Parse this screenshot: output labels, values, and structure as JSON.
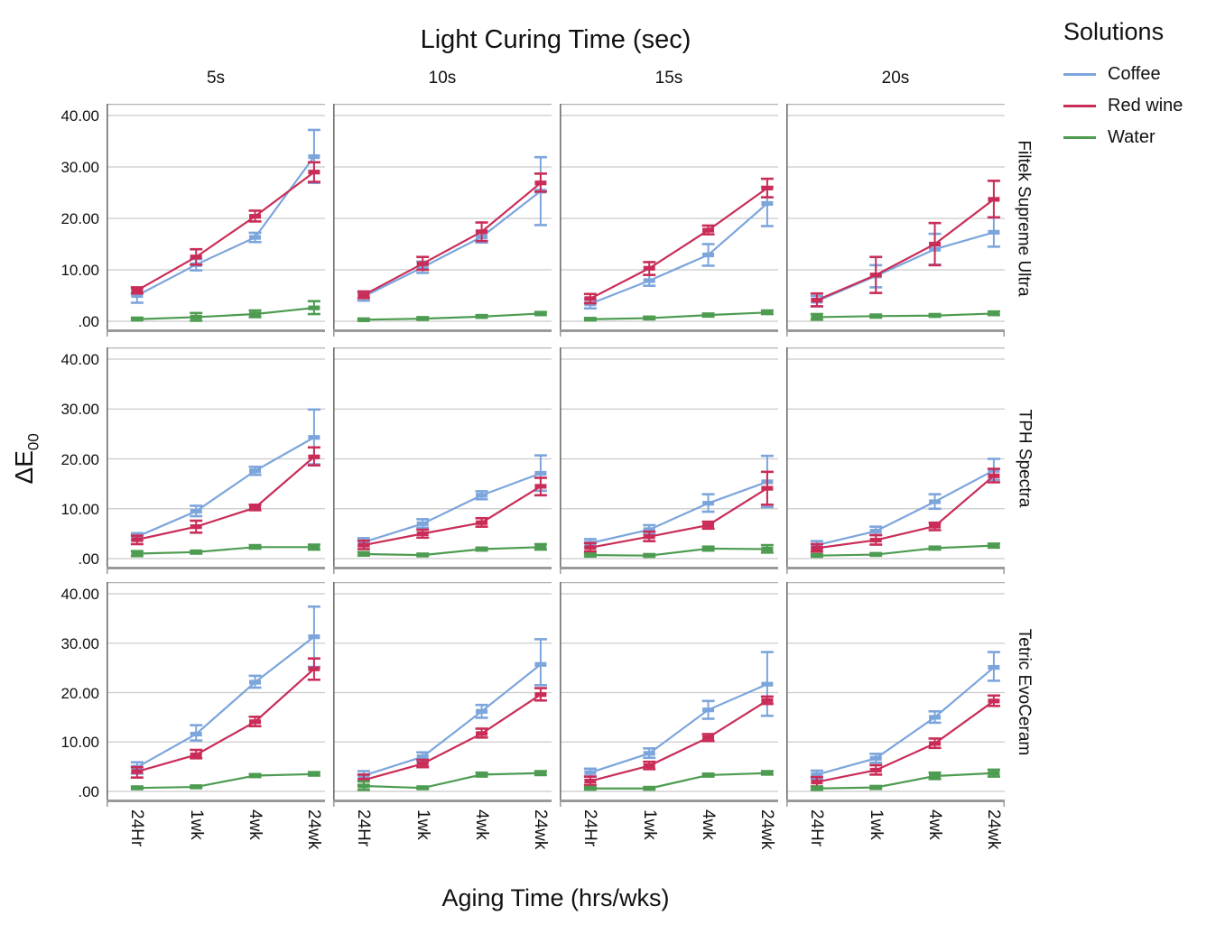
{
  "title": "Light Curing Time (sec)",
  "x_axis": {
    "label": "Aging Time (hrs/wks)"
  },
  "y_axis": {
    "label_main": "ΔE",
    "label_sub": "00"
  },
  "legend": {
    "title": "Solutions",
    "entries": [
      {
        "label": "Coffee",
        "color": "#7CA5DC"
      },
      {
        "label": "Red wine",
        "color": "#C92D57"
      },
      {
        "label": "Water",
        "color": "#4D9C51"
      }
    ]
  },
  "chart_data": {
    "type": "line",
    "title": "Light Curing Time (sec)",
    "xlabel": "Aging Time (hrs/wks)",
    "ylabel": "ΔE00",
    "x_categories": [
      "24Hr",
      "1wk",
      "4wk",
      "24wk"
    ],
    "ylim": [
      0,
      42
    ],
    "grid": true,
    "legend_position": "top-right",
    "yticks": [
      {
        "value": 40,
        "label": "40.00"
      },
      {
        "value": 30,
        "label": "30.00"
      },
      {
        "value": 20,
        "label": "20.00"
      },
      {
        "value": 10,
        "label": "10.00"
      },
      {
        "value": 0,
        "label": ".00"
      }
    ],
    "facet_columns": [
      "5s",
      "10s",
      "15s",
      "20s"
    ],
    "facet_rows": [
      "Filtek Supreme Ultra",
      "TPH Spectra",
      "Tetric EvoCeram"
    ],
    "series_colors": {
      "Coffee": "#7CA5DC",
      "Red wine": "#C92D57",
      "Water": "#4D9C51"
    },
    "panels": [
      {
        "row": "Filtek Supreme Ultra",
        "col": "5s",
        "series": [
          {
            "name": "Coffee",
            "values": [
              5.0,
              11.0,
              16.3,
              32.0
            ],
            "err_low": [
              3.6,
              9.9,
              15.4,
              26.9
            ],
            "err_high": [
              6.4,
              12.1,
              17.2,
              37.2
            ]
          },
          {
            "name": "Red wine",
            "values": [
              6.0,
              12.5,
              20.4,
              29.0
            ],
            "err_low": [
              5.4,
              11.0,
              19.4,
              27.1
            ],
            "err_high": [
              6.6,
              14.0,
              21.5,
              30.9
            ]
          },
          {
            "name": "Water",
            "values": [
              0.4,
              0.8,
              1.4,
              2.6
            ],
            "err_low": [
              0.2,
              0.1,
              0.8,
              1.4
            ],
            "err_high": [
              0.7,
              1.6,
              2.1,
              3.9
            ]
          }
        ]
      },
      {
        "row": "Filtek Supreme Ultra",
        "col": "10s",
        "series": [
          {
            "name": "Coffee",
            "values": [
              4.8,
              10.5,
              16.4,
              25.3
            ],
            "err_low": [
              4.0,
              9.4,
              15.3,
              18.7
            ],
            "err_high": [
              5.6,
              11.6,
              17.5,
              31.9
            ]
          },
          {
            "name": "Red wine",
            "values": [
              5.1,
              11.2,
              17.4,
              26.9
            ],
            "err_low": [
              4.5,
              10.0,
              15.6,
              25.2
            ],
            "err_high": [
              5.8,
              12.5,
              19.2,
              28.7
            ]
          },
          {
            "name": "Water",
            "values": [
              0.3,
              0.5,
              0.9,
              1.5
            ],
            "err_low": [
              0.1,
              0.3,
              0.7,
              1.2
            ],
            "err_high": [
              0.5,
              0.8,
              1.2,
              1.8
            ]
          }
        ]
      },
      {
        "row": "Filtek Supreme Ultra",
        "col": "15s",
        "series": [
          {
            "name": "Coffee",
            "values": [
              3.4,
              7.9,
              12.9,
              22.9
            ],
            "err_low": [
              2.5,
              6.9,
              10.8,
              18.5
            ],
            "err_high": [
              4.3,
              9.0,
              15.0,
              26.1
            ]
          },
          {
            "name": "Red wine",
            "values": [
              4.4,
              10.3,
              17.7,
              25.9
            ],
            "err_low": [
              3.5,
              9.0,
              16.9,
              24.1
            ],
            "err_high": [
              5.3,
              11.5,
              18.6,
              27.7
            ]
          },
          {
            "name": "Water",
            "values": [
              0.4,
              0.6,
              1.2,
              1.7
            ],
            "err_low": [
              0.2,
              0.4,
              0.9,
              1.4
            ],
            "err_high": [
              0.6,
              0.9,
              1.5,
              2.1
            ]
          }
        ]
      },
      {
        "row": "Filtek Supreme Ultra",
        "col": "20s",
        "series": [
          {
            "name": "Coffee",
            "values": [
              3.9,
              8.8,
              14.0,
              17.3
            ],
            "err_low": [
              2.9,
              6.6,
              11.0,
              14.5
            ],
            "err_high": [
              4.9,
              10.9,
              17.0,
              20.2
            ]
          },
          {
            "name": "Red wine",
            "values": [
              4.1,
              9.0,
              15.0,
              23.7
            ],
            "err_low": [
              2.9,
              5.5,
              10.9,
              20.2
            ],
            "err_high": [
              5.4,
              12.5,
              19.1,
              27.3
            ]
          },
          {
            "name": "Water",
            "values": [
              0.8,
              1.0,
              1.1,
              1.5
            ],
            "err_low": [
              0.3,
              0.7,
              0.9,
              1.2
            ],
            "err_high": [
              1.4,
              1.3,
              1.4,
              1.9
            ]
          }
        ]
      },
      {
        "row": "TPH Spectra",
        "col": "5s",
        "series": [
          {
            "name": "Coffee",
            "values": [
              4.4,
              9.5,
              17.6,
              24.3
            ],
            "err_low": [
              3.7,
              8.5,
              16.8,
              18.9
            ],
            "err_high": [
              5.1,
              10.6,
              18.4,
              29.9
            ]
          },
          {
            "name": "Red wine",
            "values": [
              3.8,
              6.4,
              10.2,
              20.4
            ],
            "err_low": [
              2.9,
              5.2,
              9.7,
              18.7
            ],
            "err_high": [
              4.6,
              7.6,
              10.8,
              22.3
            ]
          },
          {
            "name": "Water",
            "values": [
              1.0,
              1.3,
              2.3,
              2.3
            ],
            "err_low": [
              0.5,
              1.0,
              2.0,
              1.8
            ],
            "err_high": [
              1.5,
              1.6,
              2.7,
              2.8
            ]
          }
        ]
      },
      {
        "row": "TPH Spectra",
        "col": "10s",
        "series": [
          {
            "name": "Coffee",
            "values": [
              3.3,
              7.0,
              12.7,
              17.1
            ],
            "err_low": [
              2.6,
              6.2,
              11.9,
              13.6
            ],
            "err_high": [
              4.1,
              7.9,
              13.5,
              20.7
            ]
          },
          {
            "name": "Red wine",
            "values": [
              2.7,
              5.0,
              7.2,
              14.5
            ],
            "err_low": [
              1.9,
              4.2,
              6.4,
              12.7
            ],
            "err_high": [
              3.6,
              5.8,
              8.1,
              16.2
            ]
          },
          {
            "name": "Water",
            "values": [
              0.9,
              0.7,
              1.9,
              2.3
            ],
            "err_low": [
              0.6,
              0.5,
              1.6,
              1.8
            ],
            "err_high": [
              1.3,
              1.0,
              2.2,
              2.9
            ]
          }
        ]
      },
      {
        "row": "TPH Spectra",
        "col": "15s",
        "series": [
          {
            "name": "Coffee",
            "values": [
              3.1,
              5.8,
              11.1,
              15.4
            ],
            "err_low": [
              2.3,
              4.9,
              9.4,
              10.3
            ],
            "err_high": [
              3.9,
              6.7,
              12.9,
              20.6
            ]
          },
          {
            "name": "Red wine",
            "values": [
              2.2,
              4.4,
              6.7,
              14.1
            ],
            "err_low": [
              1.4,
              3.5,
              6.0,
              10.8
            ],
            "err_high": [
              3.1,
              5.4,
              7.4,
              17.4
            ]
          },
          {
            "name": "Water",
            "values": [
              0.7,
              0.6,
              2.0,
              1.9
            ],
            "err_low": [
              0.4,
              0.4,
              1.6,
              1.2
            ],
            "err_high": [
              1.0,
              0.9,
              2.4,
              2.7
            ]
          }
        ]
      },
      {
        "row": "TPH Spectra",
        "col": "20s",
        "series": [
          {
            "name": "Coffee",
            "values": [
              2.7,
              5.5,
              11.4,
              17.7
            ],
            "err_low": [
              2.0,
              4.7,
              10.0,
              15.8
            ],
            "err_high": [
              3.5,
              6.4,
              12.9,
              20.0
            ]
          },
          {
            "name": "Red wine",
            "values": [
              2.1,
              3.7,
              6.5,
              16.6
            ],
            "err_low": [
              1.4,
              2.8,
              5.7,
              15.3
            ],
            "err_high": [
              2.9,
              4.7,
              7.2,
              18.0
            ]
          },
          {
            "name": "Water",
            "values": [
              0.6,
              0.8,
              2.1,
              2.6
            ],
            "err_low": [
              0.4,
              0.6,
              1.8,
              2.2
            ],
            "err_high": [
              0.9,
              1.1,
              2.4,
              3.0
            ]
          }
        ]
      },
      {
        "row": "Tetric EvoCeram",
        "col": "5s",
        "series": [
          {
            "name": "Coffee",
            "values": [
              4.9,
              11.6,
              22.1,
              31.3
            ],
            "err_low": [
              3.6,
              10.3,
              21.0,
              25.2
            ],
            "err_high": [
              5.9,
              13.4,
              23.4,
              37.4
            ]
          },
          {
            "name": "Red wine",
            "values": [
              4.0,
              7.4,
              14.1,
              24.8
            ],
            "err_low": [
              2.8,
              6.7,
              13.2,
              22.6
            ],
            "err_high": [
              4.9,
              8.4,
              15.1,
              26.9
            ]
          },
          {
            "name": "Water",
            "values": [
              0.7,
              0.9,
              3.2,
              3.5
            ],
            "err_low": [
              0.5,
              0.7,
              2.9,
              3.2
            ],
            "err_high": [
              1.0,
              1.2,
              3.5,
              3.9
            ]
          }
        ]
      },
      {
        "row": "Tetric EvoCeram",
        "col": "10s",
        "series": [
          {
            "name": "Coffee",
            "values": [
              3.2,
              7.0,
              16.2,
              25.7
            ],
            "err_low": [
              2.4,
              6.1,
              14.9,
              21.5
            ],
            "err_high": [
              4.1,
              7.9,
              17.5,
              30.8
            ]
          },
          {
            "name": "Red wine",
            "values": [
              2.3,
              5.6,
              11.7,
              19.6
            ],
            "err_low": [
              1.2,
              4.9,
              10.9,
              18.4
            ],
            "err_high": [
              3.4,
              6.4,
              12.7,
              20.9
            ]
          },
          {
            "name": "Water",
            "values": [
              1.1,
              0.7,
              3.4,
              3.7
            ],
            "err_low": [
              0.3,
              0.5,
              3.0,
              3.3
            ],
            "err_high": [
              2.0,
              1.0,
              3.8,
              4.1
            ]
          }
        ]
      },
      {
        "row": "Tetric EvoCeram",
        "col": "15s",
        "series": [
          {
            "name": "Coffee",
            "values": [
              3.8,
              7.7,
              16.5,
              21.7
            ],
            "err_low": [
              3.0,
              6.8,
              14.7,
              15.3
            ],
            "err_high": [
              4.6,
              8.7,
              18.3,
              28.2
            ]
          },
          {
            "name": "Red wine",
            "values": [
              2.1,
              5.2,
              10.9,
              18.4
            ],
            "err_low": [
              1.3,
              4.5,
              10.2,
              17.7
            ],
            "err_high": [
              3.0,
              6.0,
              11.6,
              19.2
            ]
          },
          {
            "name": "Water",
            "values": [
              0.6,
              0.6,
              3.3,
              3.7
            ],
            "err_low": [
              0.4,
              0.4,
              3.0,
              3.4
            ],
            "err_high": [
              0.9,
              0.9,
              3.6,
              4.1
            ]
          }
        ]
      },
      {
        "row": "Tetric EvoCeram",
        "col": "20s",
        "series": [
          {
            "name": "Coffee",
            "values": [
              3.4,
              6.7,
              15.0,
              25.1
            ],
            "err_low": [
              2.5,
              5.8,
              13.9,
              22.4
            ],
            "err_high": [
              4.2,
              7.6,
              16.2,
              28.2
            ]
          },
          {
            "name": "Red wine",
            "values": [
              1.9,
              4.3,
              9.7,
              18.3
            ],
            "err_low": [
              1.0,
              3.4,
              8.8,
              17.3
            ],
            "err_high": [
              2.9,
              5.3,
              10.7,
              19.4
            ]
          },
          {
            "name": "Water",
            "values": [
              0.6,
              0.8,
              3.1,
              3.7
            ],
            "err_low": [
              0.3,
              0.5,
              2.5,
              3.0
            ],
            "err_high": [
              1.0,
              1.1,
              3.8,
              4.4
            ]
          }
        ]
      }
    ]
  }
}
